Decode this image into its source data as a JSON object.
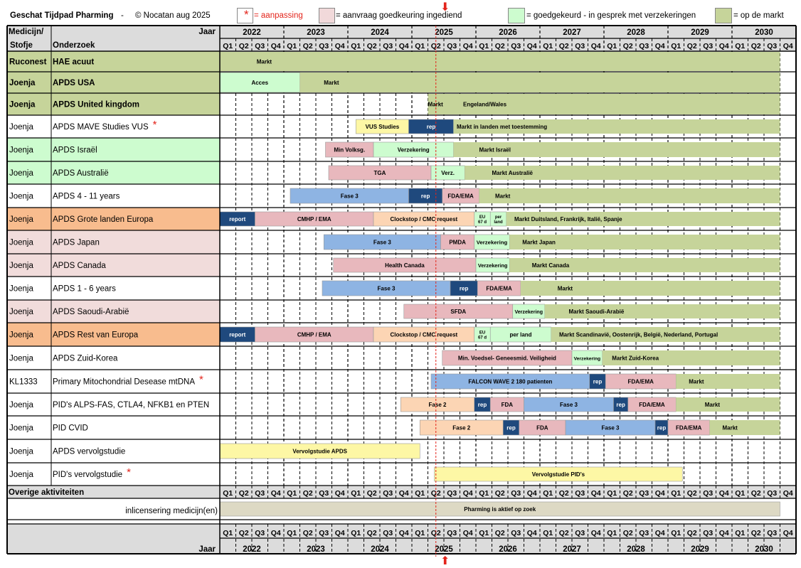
{
  "header": {
    "title": "Geschat Tijdpad Pharming",
    "dash": "-",
    "copyright": "© Nocatan  aug 2025",
    "legend": [
      {
        "label": "= aanpassing",
        "symbol": "*",
        "color": "#ffffff",
        "red": true
      },
      {
        "label": "= aanvraag goedkeuring ingediend",
        "color": "#f1d9da"
      },
      {
        "label": "= goedgekeurd - in gesprek met verzekeringen",
        "color": "#cdfccf"
      },
      {
        "label": "= op de markt",
        "color": "#c6d49a"
      }
    ]
  },
  "chart_data": {
    "type": "table",
    "col_headers": {
      "medicine": "Medicijn/ Stofje",
      "study": "Onderzoek",
      "year_label": "Jaar"
    },
    "years": [
      "2022",
      "2023",
      "2024",
      "2025",
      "2026",
      "2027",
      "2028",
      "2029",
      "2030"
    ],
    "quarters": [
      "Q1",
      "Q2",
      "Q3",
      "Q4"
    ],
    "today": "2025 Q2",
    "colors": {
      "market": "#c6d49a",
      "submitted": "#e8b8bd",
      "approved": "#cdfccf",
      "phase": "#8eb4e3",
      "report": "#1f497d",
      "clock": "#fcd5b4",
      "yellow": "#fdf7a5",
      "beige": "#ddd9c4",
      "row_green": "#c6d49a",
      "row_lightgreen": "#cdfccf",
      "row_orange": "#f8bc8e",
      "row_pink": "#f1dcdb",
      "white": "#ffffff"
    },
    "rows": [
      {
        "med": "Ruconest",
        "study": "HAE acuut",
        "bg": "row_green",
        "bold": true,
        "bars": [
          {
            "s": 0,
            "e": 35,
            "c": "market",
            "t": "Markt",
            "tx": 2.3
          }
        ]
      },
      {
        "med": "Joenja",
        "study": "APDS  USA",
        "bg": "row_green",
        "bold": true,
        "bars": [
          {
            "s": 0,
            "e": 5,
            "c": "approved",
            "t": "Acces"
          },
          {
            "s": 5,
            "e": 35,
            "c": "market",
            "t": "Markt",
            "tx": 1.5
          }
        ]
      },
      {
        "med": "Joenja",
        "study": "APDS  United kingdom",
        "bg": "row_green",
        "bold": true,
        "bars": [
          {
            "s": 13,
            "e": 35,
            "c": "market",
            "t": "Markt",
            "tx": 0.0
          }
        ],
        "extra": [
          {
            "t": "Engeland/Wales",
            "q": 15.2
          }
        ]
      },
      {
        "med": "Joenja",
        "study": "APDS  MAVE Studies VUS",
        "star": true,
        "bg": "white",
        "bars": [
          {
            "s": 8.5,
            "e": 11.8,
            "c": "yellow",
            "t": "VUS Studies"
          },
          {
            "s": 11.8,
            "e": 14.6,
            "c": "report",
            "t": "rep"
          },
          {
            "s": 14.6,
            "e": 35,
            "c": "market",
            "t": "Markt in landen met toestemming",
            "tx": 0.2
          }
        ]
      },
      {
        "med": "Joenja",
        "study": "APDS  Israël",
        "bg": "row_lightgreen",
        "bars": [
          {
            "s": 6.6,
            "e": 9.6,
            "c": "submitted",
            "t": "Min Volksg."
          },
          {
            "s": 9.6,
            "e": 14.6,
            "c": "approved",
            "t": "Verzekering"
          },
          {
            "s": 14.6,
            "e": 35,
            "c": "market",
            "t": "Markt  Israël",
            "tx": 1.6
          }
        ]
      },
      {
        "med": "Joenja",
        "study": "APDS  Australië",
        "bg": "row_lightgreen",
        "bars": [
          {
            "s": 6.8,
            "e": 13.2,
            "c": "submitted",
            "t": "TGA"
          },
          {
            "s": 13.2,
            "e": 15.3,
            "c": "approved",
            "t": "Verz."
          },
          {
            "s": 15.3,
            "e": 35,
            "c": "market",
            "t": "Markt  Australië",
            "tx": 1.7
          }
        ]
      },
      {
        "med": "Joenja",
        "study": "APDS  4 - 11 years",
        "bg": "white",
        "bars": [
          {
            "s": 4.4,
            "e": 11.8,
            "c": "phase",
            "t": "Fase 3"
          },
          {
            "s": 11.8,
            "e": 13.9,
            "c": "report",
            "t": "rep"
          },
          {
            "s": 13.9,
            "e": 16.2,
            "c": "submitted",
            "t": "FDA/EMA"
          },
          {
            "s": 16.2,
            "e": 35,
            "c": "market",
            "t": "Markt",
            "tx": 1.0
          }
        ]
      },
      {
        "med": "Joenja",
        "study": "APDS  Grote landen Europa",
        "bg": "row_orange",
        "bars": [
          {
            "s": 0,
            "e": 2.2,
            "c": "report",
            "t": "report"
          },
          {
            "s": 2.2,
            "e": 9.6,
            "c": "submitted",
            "t": "CMHP / EMA"
          },
          {
            "s": 9.6,
            "e": 15.9,
            "c": "clock",
            "t": "Clockstop  / CMC request"
          },
          {
            "s": 15.9,
            "e": 16.9,
            "c": "approved",
            "t": "EU 67 d"
          },
          {
            "s": 16.9,
            "e": 17.9,
            "c": "approved",
            "t": "per land"
          },
          {
            "s": 17.9,
            "e": 35,
            "c": "market",
            "t": "Markt   Duitsland, Frankrijk, Italië, Spanje",
            "tx": 0.5
          }
        ]
      },
      {
        "med": "Joenja",
        "study": "APDS  Japan",
        "bg": "row_pink",
        "bars": [
          {
            "s": 6.5,
            "e": 13.8,
            "c": "phase",
            "t": "Fase 3"
          },
          {
            "s": 13.8,
            "e": 15.9,
            "c": "submitted",
            "t": "PMDA"
          },
          {
            "s": 15.9,
            "e": 18.1,
            "c": "approved",
            "t": "Verzekering"
          },
          {
            "s": 18.1,
            "e": 35,
            "c": "market",
            "t": "Markt  Japan",
            "tx": 0.8
          }
        ]
      },
      {
        "med": "Joenja",
        "study": "APDS  Canada",
        "bg": "row_pink",
        "bars": [
          {
            "s": 7.1,
            "e": 16.0,
            "c": "submitted",
            "t": "Health Canada"
          },
          {
            "s": 16.0,
            "e": 18.1,
            "c": "approved",
            "t": "Verzekering"
          },
          {
            "s": 18.1,
            "e": 35,
            "c": "market",
            "t": "Markt   Canada",
            "tx": 1.4
          }
        ]
      },
      {
        "med": "Joenja",
        "study": "APDS  1 - 6 years",
        "bg": "white",
        "bars": [
          {
            "s": 6.4,
            "e": 14.4,
            "c": "phase",
            "t": "Fase 3"
          },
          {
            "s": 14.4,
            "e": 16.1,
            "c": "report",
            "t": "rep"
          },
          {
            "s": 16.1,
            "e": 18.8,
            "c": "submitted",
            "t": "FDA/EMA"
          },
          {
            "s": 18.8,
            "e": 35,
            "c": "market",
            "t": "Markt",
            "tx": 2.3
          }
        ]
      },
      {
        "med": "Joenja",
        "study": "APDS  Saoudi-Arabië",
        "bg": "row_pink",
        "bars": [
          {
            "s": 11.5,
            "e": 18.3,
            "c": "submitted",
            "t": "SFDA"
          },
          {
            "s": 18.3,
            "e": 20.3,
            "c": "approved",
            "t": "Verzekering"
          },
          {
            "s": 20.3,
            "e": 35,
            "c": "market",
            "t": "Markt  Saoudi-Arabië",
            "tx": 1.5
          }
        ]
      },
      {
        "med": "Joenja",
        "study": "APDS  Rest van Europa",
        "bg": "row_orange",
        "bars": [
          {
            "s": 0,
            "e": 2.2,
            "c": "report",
            "t": "report"
          },
          {
            "s": 2.2,
            "e": 9.6,
            "c": "submitted",
            "t": "CMHP / EMA"
          },
          {
            "s": 9.6,
            "e": 15.9,
            "c": "clock",
            "t": "Clockstop  / CMC request"
          },
          {
            "s": 15.9,
            "e": 16.9,
            "c": "approved",
            "t": "EU 67 d"
          },
          {
            "s": 16.9,
            "e": 20.7,
            "c": "approved",
            "t": "per land"
          },
          {
            "s": 20.7,
            "e": 35,
            "c": "market",
            "t": "Markt   Scandinavië, Oostenrijk, België, Nederland, Portugal",
            "tx": 0.5
          }
        ]
      },
      {
        "med": "Joenja",
        "study": "APDS  Zuid-Korea",
        "bg": "white",
        "bars": [
          {
            "s": 13.9,
            "e": 22.0,
            "c": "submitted",
            "t": "Min. Voedsel- Geneesmid. Veiligheid"
          },
          {
            "s": 22.0,
            "e": 23.9,
            "c": "approved",
            "t": "Verzekering"
          },
          {
            "s": 23.9,
            "e": 35,
            "c": "market",
            "t": "Markt   Zuid-Korea",
            "tx": 0.6
          }
        ]
      },
      {
        "med": "KL1333",
        "study": "Primary Mitochondrial Desease mtDNA",
        "star": true,
        "bg": "white",
        "bars": [
          {
            "s": 13.2,
            "e": 23.1,
            "c": "phase",
            "t": "FALCON   WAVE 2  180 patienten"
          },
          {
            "s": 23.1,
            "e": 24.1,
            "c": "report",
            "t": "rep"
          },
          {
            "s": 24.1,
            "e": 28.5,
            "c": "submitted",
            "t": "FDA/EMA"
          },
          {
            "s": 28.5,
            "e": 35,
            "c": "market",
            "t": "Markt",
            "tx": 0.8
          }
        ]
      },
      {
        "med": "Joenja",
        "study": "PID's  ALPS-FAS, CTLA4, NFKB1 en PTEN",
        "bg": "white",
        "bars": [
          {
            "s": 11.3,
            "e": 15.9,
            "c": "clock",
            "t": "Fase 2"
          },
          {
            "s": 15.9,
            "e": 16.9,
            "c": "report",
            "t": "rep"
          },
          {
            "s": 16.9,
            "e": 19.0,
            "c": "submitted",
            "t": "FDA"
          },
          {
            "s": 19.0,
            "e": 24.6,
            "c": "phase",
            "t": "Fase 3"
          },
          {
            "s": 24.6,
            "e": 25.5,
            "c": "report",
            "t": "rep"
          },
          {
            "s": 25.5,
            "e": 28.5,
            "c": "submitted",
            "t": "FDA/EMA"
          },
          {
            "s": 28.5,
            "e": 35,
            "c": "market",
            "t": "Markt",
            "tx": 1.8
          }
        ]
      },
      {
        "med": "Joenja",
        "study": "PID   CVID",
        "bg": "white",
        "bars": [
          {
            "s": 12.5,
            "e": 17.7,
            "c": "clock",
            "t": "Fase 2"
          },
          {
            "s": 17.7,
            "e": 18.7,
            "c": "report",
            "t": "rep"
          },
          {
            "s": 18.7,
            "e": 21.6,
            "c": "submitted",
            "t": "FDA"
          },
          {
            "s": 21.6,
            "e": 27.2,
            "c": "phase",
            "t": "Fase 3"
          },
          {
            "s": 27.2,
            "e": 28.0,
            "c": "report",
            "t": "rep"
          },
          {
            "s": 28.0,
            "e": 30.6,
            "c": "submitted",
            "t": "FDA/EMA"
          },
          {
            "s": 30.6,
            "e": 35,
            "c": "market",
            "t": "Markt",
            "tx": 0.8
          }
        ]
      },
      {
        "med": "Joenja",
        "study": "APDS vervolgstudie",
        "bg": "white",
        "bars": [
          {
            "s": 0,
            "e": 12.5,
            "c": "yellow",
            "t": "Vervolgstudie  APDS"
          }
        ]
      },
      {
        "med": "Joenja",
        "study": "PID's vervolgstudie",
        "star": true,
        "bg": "white",
        "bars": [
          {
            "s": 13.4,
            "e": 28.9,
            "c": "yellow",
            "t": "Vervolgstudie PID's"
          }
        ]
      }
    ],
    "other_label": "Overige aktiviteiten",
    "other_rows": [
      {
        "study": "inlicensering medicijn(en)",
        "bars": [
          {
            "s": 0,
            "e": 35,
            "c": "beige",
            "t": "Pharming is aktief op zoek"
          }
        ]
      }
    ]
  }
}
